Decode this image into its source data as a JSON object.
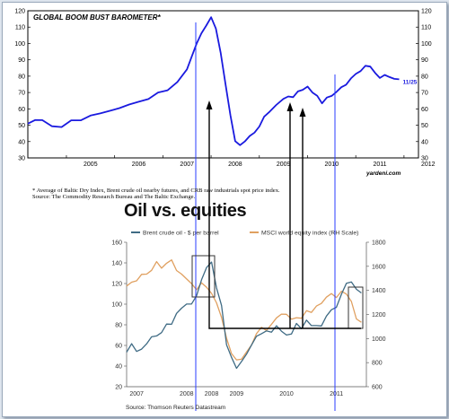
{
  "chart_data": [
    {
      "type": "line",
      "title": "GLOBAL BOOM BUST BAROMETER*",
      "xlabel": "",
      "ylabel": "",
      "xlim": [
        2004.2,
        2012.3
      ],
      "ylim": [
        30,
        120
      ],
      "yticks": [
        30,
        40,
        50,
        60,
        70,
        80,
        90,
        100,
        110,
        120
      ],
      "xticks": [
        "2005",
        "2006",
        "2007",
        "2008",
        "2009",
        "2010",
        "2011",
        "2012"
      ],
      "grid": false,
      "annotation": "11/25",
      "series": [
        {
          "name": "",
          "color": "#1a1adf",
          "x": [
            2004.2,
            2004.35,
            2004.5,
            2004.7,
            2004.9,
            2005.1,
            2005.3,
            2005.5,
            2005.7,
            2005.9,
            2006.1,
            2006.3,
            2006.5,
            2006.7,
            2006.9,
            2007.1,
            2007.3,
            2007.5,
            2007.6,
            2007.7,
            2007.8,
            2007.9,
            2008.0,
            2008.1,
            2008.2,
            2008.3,
            2008.4,
            2008.5,
            2008.6,
            2008.7,
            2008.8,
            2008.9,
            2009.0,
            2009.1,
            2009.2,
            2009.35,
            2009.5,
            2009.6,
            2009.7,
            2009.8,
            2009.9,
            2010.0,
            2010.1,
            2010.2,
            2010.3,
            2010.4,
            2010.5,
            2010.6,
            2010.7,
            2010.8,
            2010.9,
            2011.0,
            2011.1,
            2011.2,
            2011.3,
            2011.4,
            2011.5,
            2011.6,
            2011.7,
            2011.8,
            2011.9
          ],
          "values": [
            51,
            53,
            54,
            50,
            49,
            53,
            54,
            55,
            57,
            59,
            61,
            62,
            64,
            67,
            70,
            72,
            76,
            85,
            92,
            100,
            107,
            112,
            115,
            108,
            95,
            75,
            55,
            41,
            38,
            40,
            43,
            46,
            50,
            54,
            58,
            63,
            66,
            68,
            68,
            70,
            72,
            74,
            71,
            67,
            64,
            66,
            68,
            71,
            73,
            75,
            78,
            81,
            84,
            87,
            86,
            83,
            80,
            81,
            79,
            78,
            77
          ]
        }
      ]
    },
    {
      "type": "line",
      "title": "Oil vs. equities",
      "xlabel": "",
      "ylabel": "",
      "xlim": [
        2006.8,
        2011.6
      ],
      "ylim": [
        20,
        160
      ],
      "y2lim": [
        600,
        1800
      ],
      "yticks": [
        20,
        40,
        60,
        80,
        100,
        120,
        140,
        160
      ],
      "y2ticks": [
        600,
        800,
        1000,
        1200,
        1400,
        1600,
        1800
      ],
      "xticks": [
        "2007",
        "2008",
        "2008",
        "2009",
        "2010",
        "2011"
      ],
      "grid": false,
      "legend_position": "top",
      "series": [
        {
          "name": "Brent crude oil - $ per barrel",
          "axis": "left",
          "color": "#3f6b84",
          "x": [
            2006.8,
            2006.9,
            2007.0,
            2007.1,
            2007.2,
            2007.3,
            2007.4,
            2007.5,
            2007.6,
            2007.7,
            2007.8,
            2007.9,
            2008.0,
            2008.1,
            2008.2,
            2008.3,
            2008.4,
            2008.5,
            2008.6,
            2008.7,
            2008.8,
            2008.9,
            2009.0,
            2009.1,
            2009.2,
            2009.3,
            2009.4,
            2009.5,
            2009.6,
            2009.7,
            2009.8,
            2009.9,
            2010.0,
            2010.1,
            2010.2,
            2010.3,
            2010.4,
            2010.5,
            2010.6,
            2010.7,
            2010.8,
            2010.9,
            2011.0,
            2011.1,
            2011.2,
            2011.3,
            2011.4,
            2011.5
          ],
          "values": [
            52,
            58,
            56,
            60,
            64,
            66,
            72,
            74,
            78,
            82,
            90,
            93,
            96,
            100,
            110,
            124,
            136,
            140,
            118,
            96,
            64,
            46,
            42,
            46,
            52,
            60,
            68,
            70,
            72,
            74,
            76,
            78,
            74,
            72,
            78,
            80,
            82,
            78,
            76,
            80,
            86,
            92,
            96,
            108,
            122,
            118,
            112,
            108
          ]
        },
        {
          "name": "MSCI world equity index (RH Scale)",
          "axis": "right",
          "color": "#e0a060",
          "x": [
            2006.8,
            2006.9,
            2007.0,
            2007.1,
            2007.2,
            2007.3,
            2007.4,
            2007.5,
            2007.6,
            2007.7,
            2007.8,
            2007.9,
            2008.0,
            2008.1,
            2008.2,
            2008.3,
            2008.4,
            2008.5,
            2008.6,
            2008.7,
            2008.8,
            2008.9,
            2009.0,
            2009.1,
            2009.2,
            2009.3,
            2009.4,
            2009.5,
            2009.6,
            2009.7,
            2009.8,
            2009.9,
            2010.0,
            2010.1,
            2010.2,
            2010.3,
            2010.4,
            2010.5,
            2010.6,
            2010.7,
            2010.8,
            2010.9,
            2011.0,
            2011.1,
            2011.2,
            2011.3,
            2011.4,
            2011.5
          ],
          "values": [
            1440,
            1460,
            1500,
            1540,
            1560,
            1600,
            1620,
            1580,
            1600,
            1620,
            1580,
            1560,
            1500,
            1440,
            1420,
            1460,
            1440,
            1360,
            1280,
            1180,
            980,
            880,
            820,
            860,
            920,
            980,
            1020,
            1060,
            1080,
            1120,
            1160,
            1180,
            1200,
            1160,
            1140,
            1180,
            1200,
            1240,
            1280,
            1300,
            1320,
            1340,
            1360,
            1400,
            1360,
            1280,
            1180,
            1120
          ]
        }
      ]
    }
  ],
  "notes": {
    "footnote_line1": "* Average of Baltic Dry Index, Brent crude oil nearby futures, and CRB raw industrials spot price index.",
    "footnote_line2": "Source: The Commodity Research Bureau and The Baltic Exchange.",
    "yardeni": "yardeni.com",
    "source2": "Source: Thomson Reuters Datastream"
  },
  "colors": {
    "marker_lines": "#2a3cff",
    "arrows": "#000000"
  }
}
